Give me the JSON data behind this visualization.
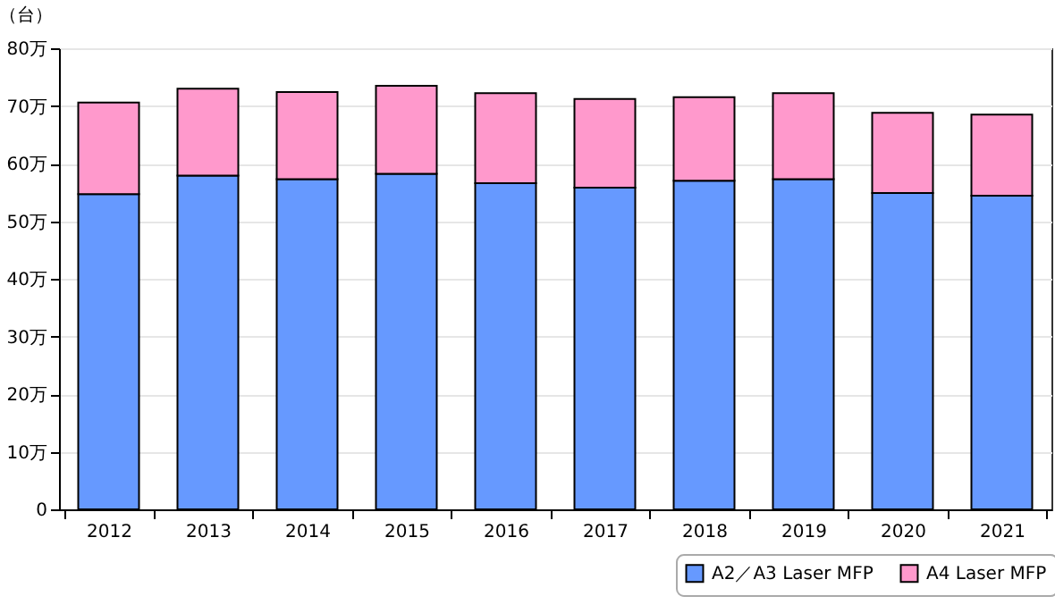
{
  "chart_data": {
    "type": "bar",
    "stacked": true,
    "ylabel": "（台）",
    "categories": [
      "2012",
      "2013",
      "2014",
      "2015",
      "2016",
      "2017",
      "2018",
      "2019",
      "2020",
      "2021"
    ],
    "series": [
      {
        "name": "A2／A3 Laser MFP",
        "color": "#6699ff",
        "values": [
          54.7,
          57.9,
          57.3,
          58.2,
          56.6,
          55.8,
          57.0,
          57.3,
          54.9,
          54.4
        ]
      },
      {
        "name": "A4 Laser MFP",
        "color": "#ff99cc",
        "values": [
          15.9,
          15.1,
          15.1,
          15.3,
          15.6,
          15.4,
          14.5,
          14.9,
          13.9,
          14.1
        ]
      }
    ],
    "ylim": [
      0,
      80
    ],
    "yticks": [
      0,
      {
        "value": 10,
        "label": "10万"
      },
      {
        "value": 20,
        "label": "20万"
      },
      {
        "value": 30,
        "label": "30万"
      },
      {
        "value": 40,
        "label": "40万"
      },
      {
        "value": 50,
        "label": "50万"
      },
      {
        "value": 60,
        "label": "60万"
      },
      {
        "value": 70,
        "label": "70万"
      },
      {
        "value": 80,
        "label": "80万"
      }
    ],
    "grid": "y",
    "legend": "bottom right"
  }
}
